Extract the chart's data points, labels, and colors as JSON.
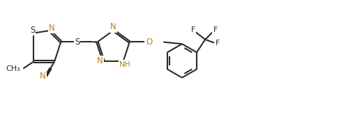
{
  "bg_color": "#ffffff",
  "line_color": "#2a2a2a",
  "atom_color": "#b8860b",
  "bond_width": 1.5,
  "font_size": 8.5,
  "fig_width": 4.86,
  "fig_height": 1.87,
  "dpi": 100,
  "xlim": [
    0,
    10
  ],
  "ylim": [
    0,
    3.85
  ]
}
